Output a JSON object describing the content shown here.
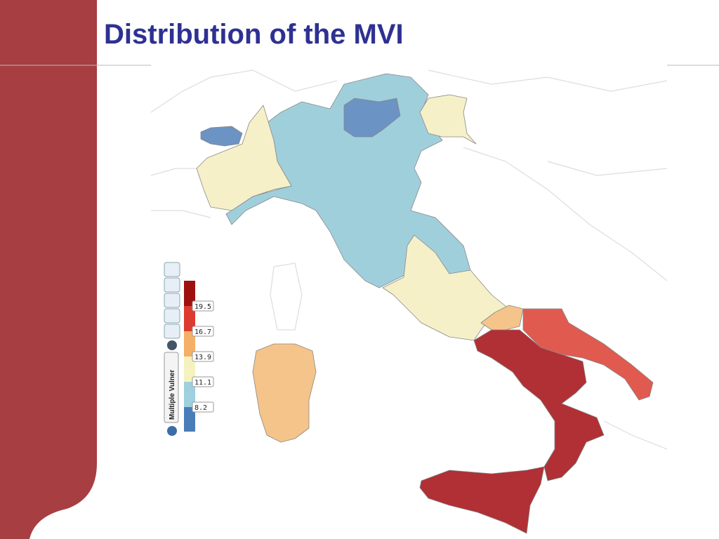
{
  "header": {
    "title": "Distribution of the MVI"
  },
  "legend": {
    "label": "Multiple Vulner",
    "breaks": [
      19.5,
      16.7,
      13.9,
      11.1,
      8.2
    ],
    "colors": [
      "#9e1010",
      "#dd3b2f",
      "#f4b066",
      "#f6f2c0",
      "#9fd0de",
      "#4a7db8"
    ]
  },
  "map": {
    "region_colors": [
      "#b03035",
      "#e05a50",
      "#f5c48a",
      "#f5f0c8",
      "#a0cfdc",
      "#6b93c4"
    ]
  }
}
